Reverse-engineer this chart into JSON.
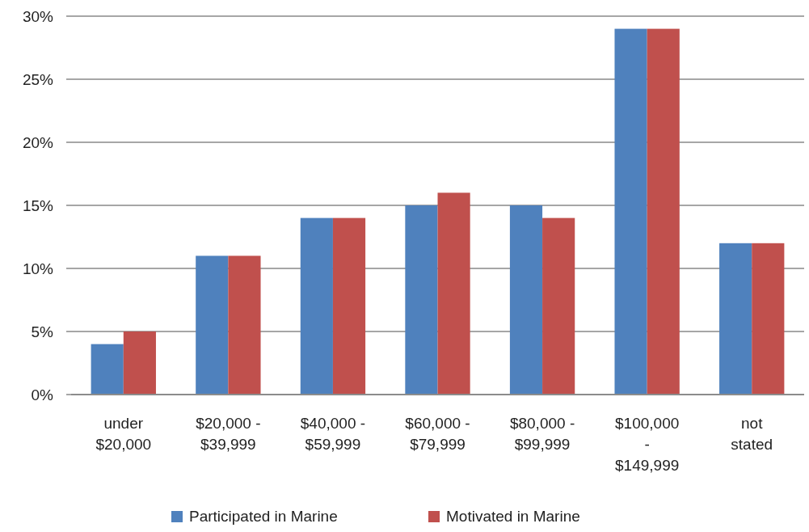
{
  "chart_data": {
    "type": "bar",
    "categories": [
      "under\n$20,000",
      "$20,000 -\n$39,999",
      "$40,000 -\n$59,999",
      "$60,000 -\n$79,999",
      "$80,000 -\n$99,999",
      "$100,000\n-\n$149,999",
      "not\nstated"
    ],
    "series": [
      {
        "name": "Participated in Marine",
        "color": "#4f81bd",
        "values": [
          4,
          11,
          14,
          15,
          15,
          29,
          12
        ]
      },
      {
        "name": "Motivated in Marine",
        "color": "#c0504d",
        "values": [
          5,
          11,
          14,
          16,
          14,
          29,
          12
        ]
      }
    ],
    "ylim": [
      0,
      30
    ],
    "yticks": [
      {
        "value": 0,
        "label": "0%"
      },
      {
        "value": 5,
        "label": "5%"
      },
      {
        "value": 10,
        "label": "10%"
      },
      {
        "value": 15,
        "label": "15%"
      },
      {
        "value": 20,
        "label": "20%"
      },
      {
        "value": 25,
        "label": "25%"
      },
      {
        "value": 30,
        "label": "30%"
      }
    ],
    "grid": "y",
    "legend": "bottom"
  }
}
